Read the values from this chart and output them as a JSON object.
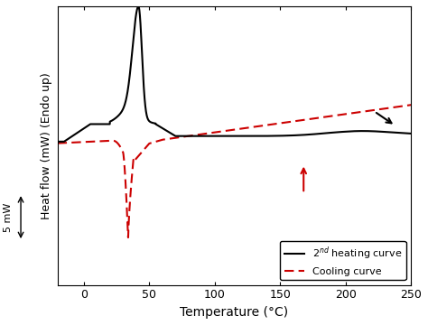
{
  "xlabel": "Temperature (°C)",
  "ylabel": "Heat flow (mW) (Endo up)",
  "scale_label": "5 mW",
  "xlim": [
    -20,
    250
  ],
  "xticks": [
    0,
    50,
    100,
    150,
    200,
    250
  ],
  "xtick_labels": [
    "0",
    "50",
    "100",
    "150",
    "200",
    "250"
  ],
  "background_color": "#ffffff",
  "heating_color": "#000000",
  "cooling_color": "#cc0000",
  "heating_label": "2$^{nd}$ heating curve",
  "cooling_label": "Cooling curve"
}
